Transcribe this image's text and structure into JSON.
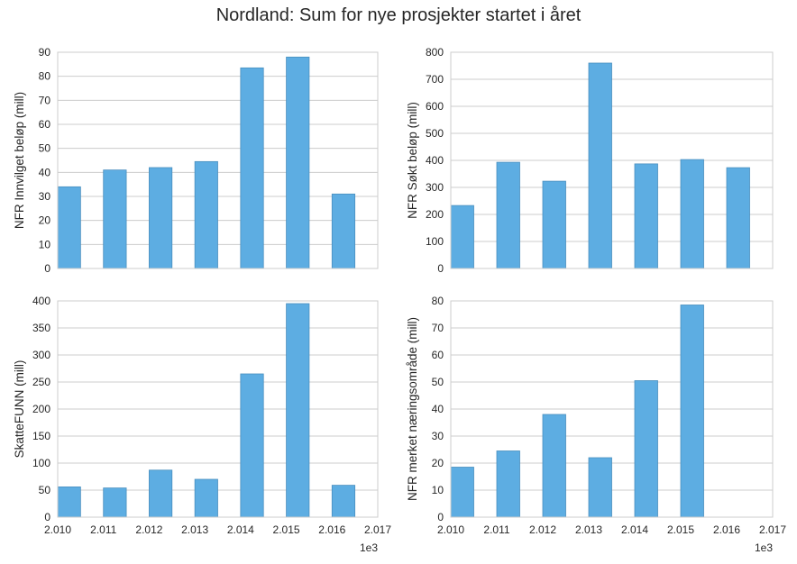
{
  "figure": {
    "title": "Nordland: Sum for nye prosjekter startet i året",
    "bar_color": "#5DADE2",
    "bar_edge_color": "#4a8fbf",
    "grid_color": "#cccccc",
    "spine_color": "#cccccc"
  },
  "chart_data": [
    {
      "type": "bar",
      "ylabel": "NFR Innvilget beløp (mill)",
      "x": [
        2010,
        2011,
        2012,
        2013,
        2014,
        2015,
        2016
      ],
      "values": [
        34,
        41,
        42,
        44.5,
        83.5,
        88,
        31
      ],
      "xlim": [
        2010,
        2017
      ],
      "ylim": [
        0,
        90
      ],
      "yticks": [
        0,
        10,
        20,
        30,
        40,
        50,
        60,
        70,
        80,
        90
      ],
      "xticks": [],
      "xtick_labels": [],
      "x_offset_label": "",
      "grid": "y"
    },
    {
      "type": "bar",
      "ylabel": "NFR Søkt beløp (mill)",
      "x": [
        2010,
        2011,
        2012,
        2013,
        2014,
        2015,
        2016
      ],
      "values": [
        233,
        393,
        323,
        760,
        387,
        403,
        373
      ],
      "xlim": [
        2010,
        2017
      ],
      "ylim": [
        0,
        800
      ],
      "yticks": [
        0,
        100,
        200,
        300,
        400,
        500,
        600,
        700,
        800
      ],
      "xticks": [],
      "xtick_labels": [],
      "x_offset_label": "",
      "grid": "y"
    },
    {
      "type": "bar",
      "ylabel": "SkatteFUNN (mill)",
      "x": [
        2010,
        2011,
        2012,
        2013,
        2014,
        2015,
        2016
      ],
      "values": [
        56,
        54,
        87,
        70,
        265,
        395,
        59
      ],
      "xlim": [
        2010,
        2017
      ],
      "ylim": [
        0,
        400
      ],
      "yticks": [
        0,
        50,
        100,
        150,
        200,
        250,
        300,
        350,
        400
      ],
      "xticks": [
        2010,
        2011,
        2012,
        2013,
        2014,
        2015,
        2016,
        2017
      ],
      "xtick_labels": [
        "2.010",
        "2.011",
        "2.012",
        "2.013",
        "2.014",
        "2.015",
        "2.016",
        "2.017"
      ],
      "x_offset_label": "1e3",
      "grid": "y"
    },
    {
      "type": "bar",
      "ylabel": "NFR merket næringsområde (mill)",
      "x": [
        2010,
        2011,
        2012,
        2013,
        2014,
        2015,
        2016
      ],
      "values": [
        18.5,
        24.5,
        38,
        22,
        50.5,
        78.5,
        0
      ],
      "xlim": [
        2010,
        2017
      ],
      "ylim": [
        0,
        80
      ],
      "yticks": [
        0,
        10,
        20,
        30,
        40,
        50,
        60,
        70,
        80
      ],
      "xticks": [
        2010,
        2011,
        2012,
        2013,
        2014,
        2015,
        2016,
        2017
      ],
      "xtick_labels": [
        "2.010",
        "2.011",
        "2.012",
        "2.013",
        "2.014",
        "2.015",
        "2.016",
        "2.017"
      ],
      "x_offset_label": "1e3",
      "grid": "y"
    }
  ]
}
